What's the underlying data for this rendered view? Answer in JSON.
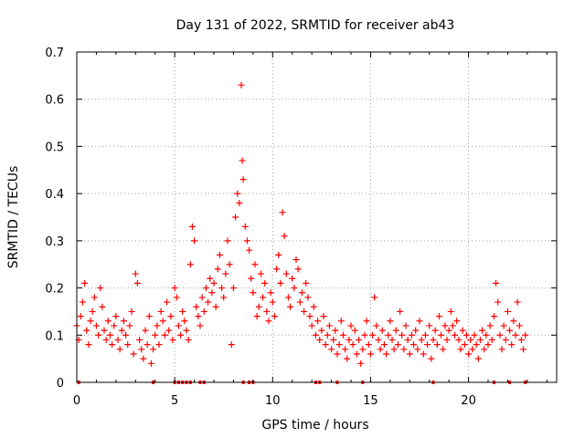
{
  "chart_data": {
    "type": "scatter",
    "title": "Day 131 of 2022, SRMTID for receiver ab43",
    "xlabel": "GPS time / hours",
    "ylabel": "SRMTID / TECUs",
    "xlim": [
      0,
      24.5
    ],
    "ylim": [
      0,
      0.7
    ],
    "x_ticks": [
      0,
      5,
      10,
      15,
      20
    ],
    "x_tick_labels": [
      "0",
      "5",
      "10",
      "15",
      "20"
    ],
    "y_ticks": [
      0,
      0.1,
      0.2,
      0.3,
      0.4,
      0.5,
      0.6,
      0.7
    ],
    "y_tick_labels": [
      "0",
      "0.1",
      "0.2",
      "0.3",
      "0.4",
      "0.5",
      "0.6",
      "0.7"
    ],
    "grid": true,
    "marker": "plus",
    "series_color": "#ff0000",
    "series": [
      {
        "name": "SRMTID",
        "points": [
          [
            0.0,
            0.12
          ],
          [
            0.1,
            0.09
          ],
          [
            0.2,
            0.14
          ],
          [
            0.3,
            0.17
          ],
          [
            0.4,
            0.21
          ],
          [
            0.5,
            0.11
          ],
          [
            0.6,
            0.08
          ],
          [
            0.7,
            0.13
          ],
          [
            0.8,
            0.15
          ],
          [
            0.9,
            0.18
          ],
          [
            1.0,
            0.12
          ],
          [
            1.1,
            0.1
          ],
          [
            1.2,
            0.2
          ],
          [
            1.3,
            0.16
          ],
          [
            1.4,
            0.11
          ],
          [
            1.5,
            0.09
          ],
          [
            1.6,
            0.13
          ],
          [
            1.7,
            0.1
          ],
          [
            1.8,
            0.08
          ],
          [
            1.9,
            0.12
          ],
          [
            2.0,
            0.14
          ],
          [
            2.1,
            0.09
          ],
          [
            2.2,
            0.07
          ],
          [
            2.3,
            0.11
          ],
          [
            2.4,
            0.13
          ],
          [
            2.5,
            0.1
          ],
          [
            2.6,
            0.08
          ],
          [
            2.7,
            0.12
          ],
          [
            2.8,
            0.15
          ],
          [
            2.9,
            0.06
          ],
          [
            3.0,
            0.23
          ],
          [
            3.1,
            0.21
          ],
          [
            3.2,
            0.09
          ],
          [
            3.3,
            0.07
          ],
          [
            3.4,
            0.05
          ],
          [
            3.5,
            0.11
          ],
          [
            3.6,
            0.08
          ],
          [
            3.7,
            0.14
          ],
          [
            3.8,
            0.04
          ],
          [
            3.9,
            0.07
          ],
          [
            4.0,
            0.1
          ],
          [
            4.1,
            0.12
          ],
          [
            4.2,
            0.08
          ],
          [
            4.3,
            0.15
          ],
          [
            4.4,
            0.13
          ],
          [
            4.5,
            0.1
          ],
          [
            4.6,
            0.17
          ],
          [
            4.7,
            0.11
          ],
          [
            4.8,
            0.14
          ],
          [
            4.9,
            0.09
          ],
          [
            5.0,
            0.2
          ],
          [
            5.1,
            0.18
          ],
          [
            5.2,
            0.12
          ],
          [
            5.3,
            0.1
          ],
          [
            5.4,
            0.15
          ],
          [
            5.5,
            0.13
          ],
          [
            5.6,
            0.11
          ],
          [
            5.7,
            0.09
          ],
          [
            5.8,
            0.25
          ],
          [
            5.9,
            0.33
          ],
          [
            6.0,
            0.3
          ],
          [
            6.1,
            0.16
          ],
          [
            6.2,
            0.14
          ],
          [
            6.3,
            0.12
          ],
          [
            6.4,
            0.18
          ],
          [
            6.5,
            0.15
          ],
          [
            6.6,
            0.2
          ],
          [
            6.7,
            0.17
          ],
          [
            6.8,
            0.22
          ],
          [
            6.9,
            0.19
          ],
          [
            7.0,
            0.21
          ],
          [
            7.1,
            0.16
          ],
          [
            7.2,
            0.24
          ],
          [
            7.3,
            0.27
          ],
          [
            7.4,
            0.2
          ],
          [
            7.5,
            0.18
          ],
          [
            7.6,
            0.23
          ],
          [
            7.7,
            0.3
          ],
          [
            7.8,
            0.25
          ],
          [
            7.9,
            0.08
          ],
          [
            8.0,
            0.2
          ],
          [
            8.1,
            0.35
          ],
          [
            8.2,
            0.4
          ],
          [
            8.3,
            0.38
          ],
          [
            8.4,
            0.63
          ],
          [
            8.45,
            0.47
          ],
          [
            8.5,
            0.43
          ],
          [
            8.6,
            0.33
          ],
          [
            8.7,
            0.3
          ],
          [
            8.8,
            0.28
          ],
          [
            8.9,
            0.22
          ],
          [
            9.0,
            0.19
          ],
          [
            9.1,
            0.25
          ],
          [
            9.2,
            0.14
          ],
          [
            9.3,
            0.16
          ],
          [
            9.4,
            0.23
          ],
          [
            9.5,
            0.18
          ],
          [
            9.6,
            0.21
          ],
          [
            9.7,
            0.15
          ],
          [
            9.8,
            0.13
          ],
          [
            9.9,
            0.19
          ],
          [
            10.0,
            0.17
          ],
          [
            10.1,
            0.14
          ],
          [
            10.2,
            0.24
          ],
          [
            10.3,
            0.27
          ],
          [
            10.4,
            0.21
          ],
          [
            10.5,
            0.36
          ],
          [
            10.6,
            0.31
          ],
          [
            10.7,
            0.23
          ],
          [
            10.8,
            0.18
          ],
          [
            10.9,
            0.16
          ],
          [
            11.0,
            0.22
          ],
          [
            11.1,
            0.2
          ],
          [
            11.2,
            0.26
          ],
          [
            11.3,
            0.24
          ],
          [
            11.4,
            0.17
          ],
          [
            11.5,
            0.19
          ],
          [
            11.6,
            0.15
          ],
          [
            11.7,
            0.21
          ],
          [
            11.8,
            0.18
          ],
          [
            11.9,
            0.14
          ],
          [
            12.0,
            0.12
          ],
          [
            12.1,
            0.16
          ],
          [
            12.2,
            0.1
          ],
          [
            12.3,
            0.13
          ],
          [
            12.4,
            0.09
          ],
          [
            12.5,
            0.11
          ],
          [
            12.6,
            0.14
          ],
          [
            12.7,
            0.08
          ],
          [
            12.8,
            0.1
          ],
          [
            12.9,
            0.12
          ],
          [
            13.0,
            0.07
          ],
          [
            13.1,
            0.09
          ],
          [
            13.2,
            0.11
          ],
          [
            13.3,
            0.06
          ],
          [
            13.4,
            0.08
          ],
          [
            13.5,
            0.13
          ],
          [
            13.6,
            0.1
          ],
          [
            13.7,
            0.07
          ],
          [
            13.8,
            0.05
          ],
          [
            13.9,
            0.09
          ],
          [
            14.0,
            0.12
          ],
          [
            14.1,
            0.08
          ],
          [
            14.2,
            0.11
          ],
          [
            14.3,
            0.06
          ],
          [
            14.4,
            0.09
          ],
          [
            14.5,
            0.04
          ],
          [
            14.6,
            0.07
          ],
          [
            14.7,
            0.1
          ],
          [
            14.8,
            0.13
          ],
          [
            14.9,
            0.08
          ],
          [
            15.0,
            0.06
          ],
          [
            15.1,
            0.1
          ],
          [
            15.2,
            0.18
          ],
          [
            15.3,
            0.12
          ],
          [
            15.4,
            0.09
          ],
          [
            15.5,
            0.07
          ],
          [
            15.6,
            0.11
          ],
          [
            15.7,
            0.08
          ],
          [
            15.8,
            0.06
          ],
          [
            15.9,
            0.1
          ],
          [
            16.0,
            0.13
          ],
          [
            16.1,
            0.09
          ],
          [
            16.2,
            0.07
          ],
          [
            16.3,
            0.11
          ],
          [
            16.4,
            0.08
          ],
          [
            16.5,
            0.15
          ],
          [
            16.6,
            0.1
          ],
          [
            16.7,
            0.07
          ],
          [
            16.8,
            0.12
          ],
          [
            16.9,
            0.09
          ],
          [
            17.0,
            0.06
          ],
          [
            17.1,
            0.1
          ],
          [
            17.2,
            0.08
          ],
          [
            17.3,
            0.11
          ],
          [
            17.4,
            0.07
          ],
          [
            17.5,
            0.13
          ],
          [
            17.6,
            0.09
          ],
          [
            17.7,
            0.06
          ],
          [
            17.8,
            0.1
          ],
          [
            17.9,
            0.08
          ],
          [
            18.0,
            0.12
          ],
          [
            18.1,
            0.05
          ],
          [
            18.2,
            0.09
          ],
          [
            18.3,
            0.11
          ],
          [
            18.4,
            0.08
          ],
          [
            18.5,
            0.14
          ],
          [
            18.6,
            0.1
          ],
          [
            18.7,
            0.07
          ],
          [
            18.8,
            0.12
          ],
          [
            18.9,
            0.09
          ],
          [
            19.0,
            0.11
          ],
          [
            19.1,
            0.15
          ],
          [
            19.2,
            0.12
          ],
          [
            19.3,
            0.1
          ],
          [
            19.4,
            0.13
          ],
          [
            19.5,
            0.09
          ],
          [
            19.6,
            0.07
          ],
          [
            19.7,
            0.11
          ],
          [
            19.8,
            0.08
          ],
          [
            19.9,
            0.1
          ],
          [
            20.0,
            0.06
          ],
          [
            20.1,
            0.09
          ],
          [
            20.2,
            0.07
          ],
          [
            20.3,
            0.1
          ],
          [
            20.4,
            0.08
          ],
          [
            20.5,
            0.05
          ],
          [
            20.6,
            0.09
          ],
          [
            20.7,
            0.11
          ],
          [
            20.8,
            0.07
          ],
          [
            20.9,
            0.1
          ],
          [
            21.0,
            0.08
          ],
          [
            21.1,
            0.12
          ],
          [
            21.2,
            0.09
          ],
          [
            21.3,
            0.14
          ],
          [
            21.4,
            0.21
          ],
          [
            21.5,
            0.17
          ],
          [
            21.6,
            0.1
          ],
          [
            21.7,
            0.07
          ],
          [
            21.8,
            0.12
          ],
          [
            21.9,
            0.09
          ],
          [
            22.0,
            0.15
          ],
          [
            22.1,
            0.11
          ],
          [
            22.2,
            0.08
          ],
          [
            22.3,
            0.13
          ],
          [
            22.4,
            0.1
          ],
          [
            22.5,
            0.17
          ],
          [
            22.6,
            0.12
          ],
          [
            22.7,
            0.09
          ],
          [
            22.8,
            0.07
          ],
          [
            22.9,
            0.1
          ]
        ]
      }
    ],
    "axis_markers": [
      0.1,
      3.9,
      5.0,
      5.2,
      5.4,
      5.6,
      5.8,
      6.3,
      6.5,
      8.5,
      8.8,
      9.0,
      12.2,
      12.4,
      13.3,
      14.6,
      18.2,
      21.3,
      22.1,
      22.9
    ]
  }
}
